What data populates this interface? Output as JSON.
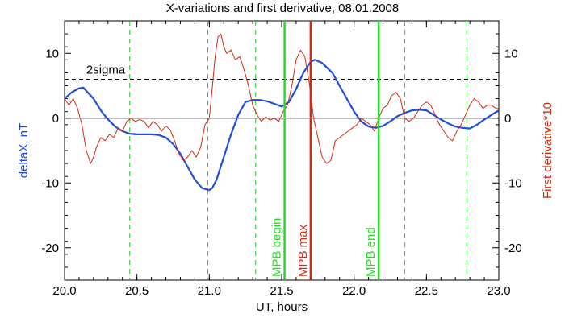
{
  "chart_data": {
    "type": "line",
    "title": "X-variations and first derivative, 08.01.2008",
    "xlabel": "UT, hours",
    "ylabel_left": "deltaX, nT",
    "ylabel_right": "First derivative*10",
    "xlim": [
      20.0,
      23.0
    ],
    "ylim": [
      -25,
      15
    ],
    "x_ticks": [
      "20.0",
      "20.5",
      "21.0",
      "21.5",
      "22.0",
      "22.5",
      "23.0"
    ],
    "x_tick_values": [
      20.0,
      20.5,
      21.0,
      21.5,
      22.0,
      22.5,
      23.0
    ],
    "y_ticks_left": [
      "-20",
      "-10",
      "0",
      "10"
    ],
    "y_ticks_right": [
      "-20",
      "-10",
      "0",
      "10"
    ],
    "y_tick_values": [
      -20,
      -10,
      0,
      10
    ],
    "grid": false,
    "threshold": {
      "label": "2sigma",
      "value": 6
    },
    "colors": {
      "deltaX": "#1f4fd6",
      "derivative": "#d42a10",
      "mpb_lines": "#22dd22",
      "mpb_max": "#d42a10",
      "dashed_markers": "#22cc22"
    },
    "dashed_markers_x": [
      20.45,
      20.99,
      21.32,
      22.35,
      22.78
    ],
    "events": [
      {
        "label": "MPB begin",
        "x": 21.52,
        "color": "#22dd22"
      },
      {
        "label": "MPB max",
        "x": 21.7,
        "color": "#d42a10"
      },
      {
        "label": "MPB end",
        "x": 22.17,
        "color": "#22dd22"
      }
    ],
    "series": [
      {
        "key": "deltaX",
        "axis": "left",
        "x": [
          20.0,
          20.05,
          20.1,
          20.13,
          20.2,
          20.25,
          20.3,
          20.35,
          20.4,
          20.45,
          20.5,
          20.55,
          20.6,
          20.65,
          20.7,
          20.75,
          20.8,
          20.85,
          20.9,
          20.95,
          21.0,
          21.02,
          21.05,
          21.1,
          21.15,
          21.2,
          21.25,
          21.3,
          21.35,
          21.4,
          21.45,
          21.5,
          21.55,
          21.6,
          21.65,
          21.7,
          21.73,
          21.78,
          21.85,
          21.9,
          21.95,
          22.0,
          22.05,
          22.1,
          22.15,
          22.2,
          22.25,
          22.3,
          22.35,
          22.4,
          22.45,
          22.5,
          22.55,
          22.6,
          22.65,
          22.7,
          22.75,
          22.8,
          22.85,
          22.9,
          22.95,
          23.0
        ],
        "values": [
          3.0,
          4.0,
          4.6,
          4.7,
          3.0,
          1.2,
          -0.2,
          -1.3,
          -2.0,
          -2.4,
          -2.5,
          -2.5,
          -2.5,
          -2.6,
          -3.0,
          -4.0,
          -5.5,
          -7.5,
          -9.5,
          -10.8,
          -11.1,
          -10.8,
          -9.5,
          -6.0,
          -2.5,
          0.5,
          2.5,
          2.8,
          2.8,
          2.6,
          2.2,
          1.8,
          2.5,
          4.5,
          7.0,
          8.7,
          9.0,
          8.5,
          7.0,
          5.0,
          3.0,
          1.0,
          -0.5,
          -1.3,
          -1.5,
          -1.2,
          -0.5,
          0.3,
          0.8,
          1.2,
          1.3,
          1.2,
          0.5,
          -0.2,
          -0.8,
          -1.3,
          -1.5,
          -1.6,
          -1.0,
          -0.2,
          0.5,
          1.2
        ]
      },
      {
        "key": "derivative",
        "axis": "right",
        "x": [
          20.0,
          20.03,
          20.06,
          20.09,
          20.12,
          20.15,
          20.18,
          20.2,
          20.22,
          20.25,
          20.28,
          20.31,
          20.34,
          20.37,
          20.4,
          20.43,
          20.46,
          20.49,
          20.52,
          20.55,
          20.58,
          20.61,
          20.64,
          20.67,
          20.7,
          20.73,
          20.76,
          20.79,
          20.82,
          20.85,
          20.88,
          20.91,
          20.94,
          20.97,
          21.0,
          21.02,
          21.04,
          21.06,
          21.08,
          21.1,
          21.12,
          21.15,
          21.18,
          21.21,
          21.24,
          21.27,
          21.3,
          21.33,
          21.36,
          21.39,
          21.42,
          21.45,
          21.48,
          21.51,
          21.54,
          21.57,
          21.6,
          21.63,
          21.66,
          21.69,
          21.72,
          21.75,
          21.78,
          21.81,
          21.84,
          21.87,
          21.9,
          21.93,
          21.96,
          21.99,
          22.02,
          22.05,
          22.08,
          22.11,
          22.14,
          22.17,
          22.2,
          22.23,
          22.26,
          22.29,
          22.32,
          22.35,
          22.38,
          22.41,
          22.44,
          22.47,
          22.5,
          22.53,
          22.56,
          22.59,
          22.62,
          22.65,
          22.68,
          22.71,
          22.74,
          22.77,
          22.8,
          22.83,
          22.86,
          22.89,
          22.92,
          22.95,
          22.98,
          23.0
        ],
        "values": [
          3.0,
          2.0,
          3.0,
          1.5,
          -1.0,
          -5.0,
          -7.0,
          -6.0,
          -4.5,
          -3.0,
          -3.5,
          -2.5,
          -3.0,
          -1.5,
          -2.0,
          -0.5,
          0.0,
          -0.5,
          -0.2,
          -0.5,
          -1.5,
          -0.5,
          -1.0,
          -2.0,
          -1.2,
          -1.8,
          -3.5,
          -5.5,
          -6.5,
          -6.0,
          -5.0,
          -6.0,
          -4.5,
          -1.0,
          0.0,
          4.5,
          9.5,
          12.5,
          13.0,
          11.0,
          10.0,
          10.5,
          9.0,
          9.5,
          7.5,
          5.0,
          2.0,
          0.5,
          -0.5,
          0.2,
          -0.3,
          0.0,
          -0.5,
          1.0,
          2.0,
          5.0,
          9.0,
          10.5,
          9.5,
          5.5,
          0.0,
          -3.0,
          -6.0,
          -7.0,
          -6.5,
          -3.5,
          -3.0,
          -2.5,
          -2.0,
          -1.5,
          -1.0,
          0.0,
          -0.5,
          -1.0,
          -2.0,
          0.0,
          1.5,
          2.0,
          3.5,
          4.0,
          3.0,
          0.0,
          -0.5,
          0.0,
          1.0,
          2.0,
          2.5,
          2.0,
          0.5,
          -1.0,
          -2.0,
          -3.0,
          -3.5,
          -2.0,
          -1.0,
          0.5,
          2.0,
          3.0,
          2.5,
          1.5,
          2.0,
          2.0,
          1.5,
          1.5
        ]
      }
    ]
  }
}
